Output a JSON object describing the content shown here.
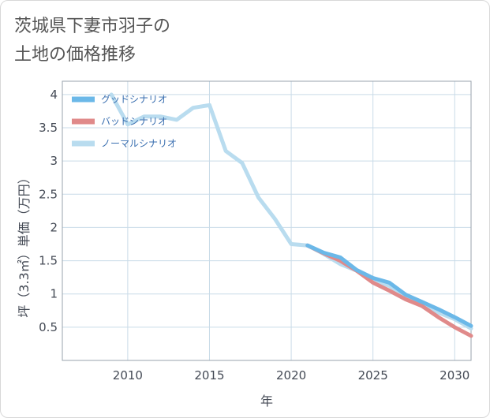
{
  "page": {
    "title_line1": "茨城県下妻市羽子の",
    "title_line2": "土地の価格推移"
  },
  "chart_data": {
    "type": "line",
    "title": "茨城県下妻市羽子の土地の価格推移",
    "xlabel": "年",
    "ylabel": "坪（3.3㎡）単価（万円）",
    "xlim": [
      2006,
      2031
    ],
    "ylim": [
      0,
      4.2
    ],
    "x_ticks": [
      2010,
      2015,
      2020,
      2025,
      2030
    ],
    "y_ticks": [
      0.5,
      1,
      1.5,
      2,
      2.5,
      3,
      3.5,
      4
    ],
    "y_tick_labels": [
      "0.5",
      "1",
      "1.5",
      "2",
      "2.5",
      "3",
      "3.5",
      "4"
    ],
    "x_tick_labels": [
      "2010",
      "2015",
      "2020",
      "2025",
      "2030"
    ],
    "grid": true,
    "legend_position": "top-left",
    "series": [
      {
        "name": "グッドシナリオ",
        "color": "#6bb8e8",
        "x": [
          2021,
          2022,
          2023,
          2024,
          2025,
          2026,
          2027,
          2028,
          2029,
          2030,
          2031
        ],
        "values": [
          1.73,
          1.62,
          1.55,
          1.36,
          1.24,
          1.17,
          0.99,
          0.88,
          0.77,
          0.65,
          0.52
        ]
      },
      {
        "name": "バッドシナリオ",
        "color": "#e08a8a",
        "x": [
          2021,
          2022,
          2023,
          2024,
          2025,
          2026,
          2027,
          2028,
          2029,
          2030,
          2031
        ],
        "values": [
          1.73,
          1.61,
          1.5,
          1.35,
          1.17,
          1.05,
          0.92,
          0.82,
          0.65,
          0.5,
          0.37
        ]
      },
      {
        "name": "ノーマルシナリオ",
        "color": "#b9dcef",
        "x": [
          2009,
          2010,
          2011,
          2012,
          2013,
          2014,
          2015,
          2016,
          2017,
          2018,
          2019,
          2020,
          2021,
          2022,
          2023,
          2024,
          2025,
          2026,
          2027,
          2028,
          2029,
          2030,
          2031
        ],
        "values": [
          4.0,
          3.55,
          3.67,
          3.67,
          3.62,
          3.8,
          3.84,
          3.15,
          2.97,
          2.45,
          2.13,
          1.75,
          1.73,
          1.6,
          1.45,
          1.35,
          1.22,
          1.12,
          0.98,
          0.86,
          0.72,
          0.62,
          0.48
        ]
      }
    ]
  }
}
